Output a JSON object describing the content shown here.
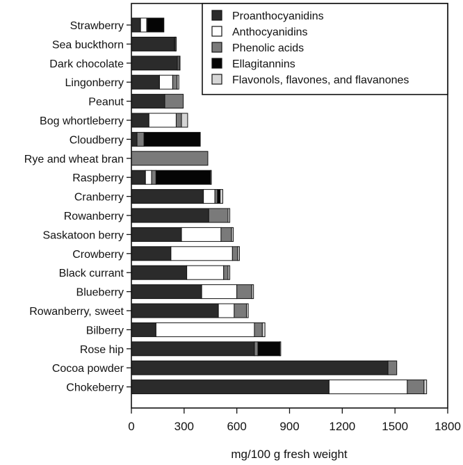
{
  "chart_data": {
    "type": "bar",
    "orientation": "horizontal",
    "stacked": true,
    "title": "",
    "xlabel": "mg/100 g fresh weight",
    "ylabel": "",
    "xlim": [
      0,
      1800
    ],
    "xticks": [
      "0",
      "300",
      "600",
      "900",
      "1200",
      "1500",
      "1800"
    ],
    "legend_position": "top-right",
    "categories": [
      "Strawberry",
      "Sea buckthorn",
      "Dark chocolate",
      "Lingonberry",
      "Peanut",
      "Bog whortleberry",
      "Cloudberry",
      "Rye and wheat bran",
      "Raspberry",
      "Cranberry",
      "Rowanberry",
      "Saskatoon berry",
      "Crowberry",
      "Black currant",
      "Blueberry",
      "Rowanberry, sweet",
      "Bilberry",
      "Rose hip",
      "Cocoa powder",
      "Chokeberry"
    ],
    "series": [
      {
        "name": "Proanthocyanidins",
        "color": "#2b2b2b",
        "values": [
          52,
          245,
          262,
          160,
          190,
          100,
          32,
          0,
          80,
          410,
          440,
          285,
          225,
          315,
          400,
          495,
          140,
          700,
          1460,
          1125
        ]
      },
      {
        "name": "Anthocyanidins",
        "color": "#ffffff",
        "values": [
          35,
          0,
          0,
          75,
          0,
          155,
          0,
          0,
          35,
          65,
          0,
          225,
          350,
          210,
          200,
          90,
          560,
          0,
          0,
          445
        ]
      },
      {
        "name": "Phenolic acids",
        "color": "#7a7a7a",
        "values": [
          5,
          5,
          10,
          25,
          105,
          30,
          40,
          435,
          25,
          15,
          110,
          60,
          30,
          25,
          85,
          70,
          45,
          20,
          50,
          95
        ]
      },
      {
        "name": "Ellagitannins",
        "color": "#050505",
        "values": [
          90,
          0,
          0,
          0,
          0,
          0,
          320,
          0,
          310,
          15,
          0,
          0,
          0,
          0,
          0,
          0,
          0,
          125,
          0,
          0
        ]
      },
      {
        "name": "Flavonols, flavones, and flavanones",
        "color": "#d6d6d6",
        "values": [
          3,
          5,
          5,
          10,
          0,
          35,
          0,
          0,
          5,
          15,
          10,
          10,
          10,
          10,
          10,
          10,
          15,
          5,
          0,
          15
        ]
      }
    ]
  }
}
